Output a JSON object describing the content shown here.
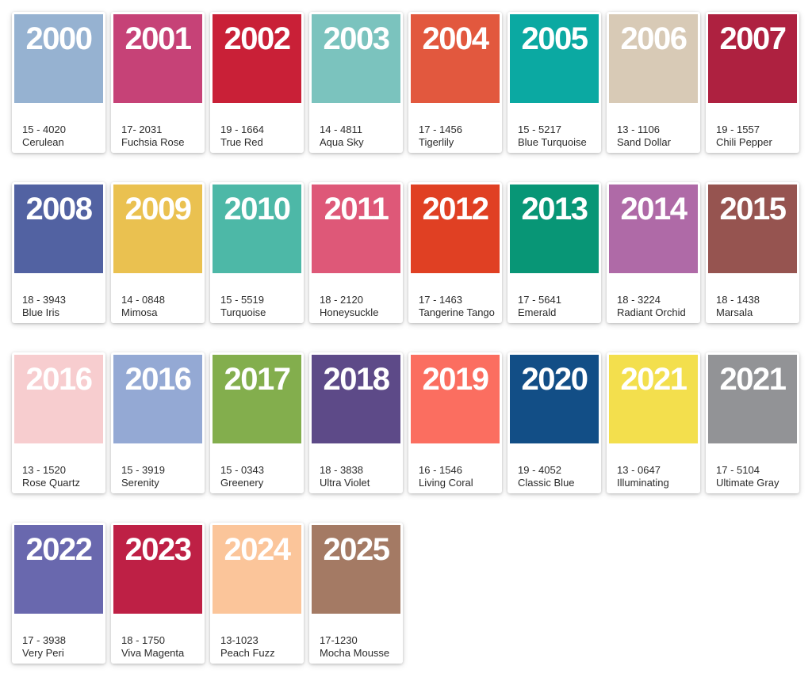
{
  "page": {
    "background": "#ffffff",
    "card_background": "#ffffff",
    "year_text_color": "#ffffff",
    "label_text_color": "#2b2b2b"
  },
  "cards": [
    {
      "year": "2000",
      "code": "15 - 4020",
      "name": "Cerulean",
      "color": "#96B2D1"
    },
    {
      "year": "2001",
      "code": "17- 2031",
      "name": "Fuchsia Rose",
      "color": "#C64277"
    },
    {
      "year": "2002",
      "code": "19 - 1664",
      "name": "True Red",
      "color": "#C92037"
    },
    {
      "year": "2003",
      "code": "14 - 4811",
      "name": "Aqua Sky",
      "color": "#7BC3BE"
    },
    {
      "year": "2004",
      "code": "17 - 1456",
      "name": "Tigerlily",
      "color": "#E2583E"
    },
    {
      "year": "2005",
      "code": "15 - 5217",
      "name": "Blue Turquoise",
      "color": "#0BA9A2"
    },
    {
      "year": "2006",
      "code": "13 - 1106",
      "name": "Sand Dollar",
      "color": "#D8CAB6"
    },
    {
      "year": "2007",
      "code": "19 - 1557",
      "name": "Chili Pepper",
      "color": "#AE2140"
    },
    {
      "year": "2008",
      "code": "18 - 3943",
      "name": "Blue Iris",
      "color": "#5262A2"
    },
    {
      "year": "2009",
      "code": "14 - 0848",
      "name": "Mimosa",
      "color": "#EAC150"
    },
    {
      "year": "2010",
      "code": "15 - 5519",
      "name": "Turquoise",
      "color": "#4DB8A7"
    },
    {
      "year": "2011",
      "code": "18 - 2120",
      "name": "Honeysuckle",
      "color": "#DE5878"
    },
    {
      "year": "2012",
      "code": "17 - 1463",
      "name": "Tangerine Tango",
      "color": "#E04023"
    },
    {
      "year": "2013",
      "code": "17 - 5641",
      "name": "Emerald",
      "color": "#089676"
    },
    {
      "year": "2014",
      "code": "18 - 3224",
      "name": "Radiant Orchid",
      "color": "#AF6AA7"
    },
    {
      "year": "2015",
      "code": "18 - 1438",
      "name": "Marsala",
      "color": "#965450"
    },
    {
      "year": "2016",
      "code": "13 - 1520",
      "name": "Rose Quartz",
      "color": "#F7CDCF"
    },
    {
      "year": "2016",
      "code": "15 - 3919",
      "name": "Serenity",
      "color": "#94A9D4"
    },
    {
      "year": "2017",
      "code": "15 - 0343",
      "name": "Greenery",
      "color": "#83AE4D"
    },
    {
      "year": "2018",
      "code": "18 - 3838",
      "name": "Ultra Violet",
      "color": "#5D4A88"
    },
    {
      "year": "2019",
      "code": "16 - 1546",
      "name": "Living Coral",
      "color": "#FB6E60"
    },
    {
      "year": "2020",
      "code": "19 - 4052",
      "name": "Classic Blue",
      "color": "#124E86"
    },
    {
      "year": "2021",
      "code": "13 - 0647",
      "name": "Illuminating",
      "color": "#F3DF4D"
    },
    {
      "year": "2021",
      "code": "17 - 5104",
      "name": "Ultimate Gray",
      "color": "#929396"
    },
    {
      "year": "2022",
      "code": "17 - 3938",
      "name": "Very Peri",
      "color": "#6968AE"
    },
    {
      "year": "2023",
      "code": "18 - 1750",
      "name": "Viva Magenta",
      "color": "#BE2045"
    },
    {
      "year": "2024",
      "code": "13-1023",
      "name": "Peach Fuzz",
      "color": "#FBC59A"
    },
    {
      "year": "2025",
      "code": "17-1230",
      "name": "Mocha Mousse",
      "color": "#A47A64"
    }
  ]
}
